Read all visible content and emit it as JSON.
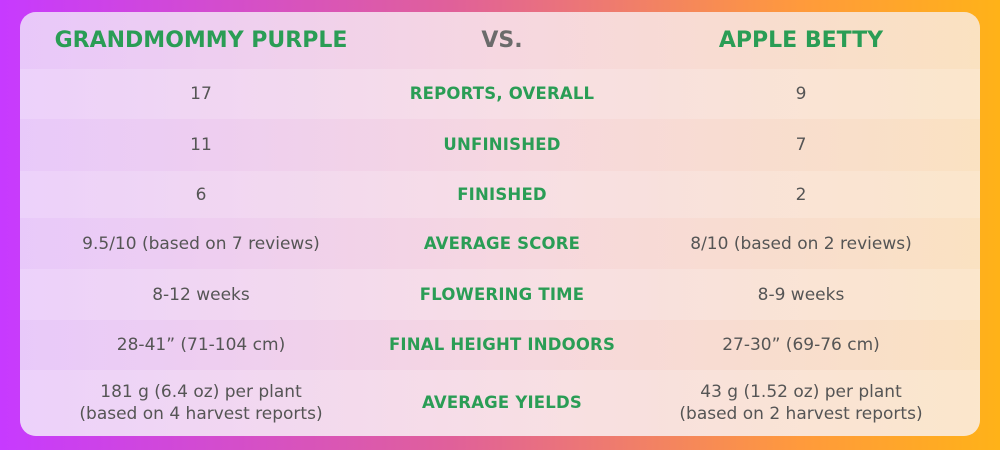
{
  "header": {
    "left": "GRANDMOMMY PURPLE",
    "middle": "VS.",
    "right": "APPLE BETTY"
  },
  "rows": [
    {
      "left": "17",
      "label": "REPORTS, OVERALL",
      "right": "9"
    },
    {
      "left": "11",
      "label": "UNFINISHED",
      "right": "7"
    },
    {
      "left": "6",
      "label": "FINISHED",
      "right": "2"
    },
    {
      "left": "9.5/10 (based on 7 reviews)",
      "label": "AVERAGE SCORE",
      "right": "8/10 (based on 2 reviews)"
    },
    {
      "left": "8-12 weeks",
      "label": "FLOWERING TIME",
      "right": "8-9 weeks"
    },
    {
      "left": "28-41” (71-104 cm)",
      "label": "FINAL HEIGHT INDOORS",
      "right": "27-30” (69-76 cm)"
    },
    {
      "left_line1": "181 g (6.4 oz) per plant",
      "left_line2": "(based on 4 harvest reports)",
      "label": "AVERAGE YIELDS",
      "right_line1": "43 g (1.52 oz) per plant",
      "right_line2": "(based on 2 harvest reports)"
    }
  ],
  "colors": {
    "label_green": "#2a9d55",
    "text_gray": "#555555",
    "gradient_left": "#c73aff",
    "gradient_right": "#ffb218"
  }
}
